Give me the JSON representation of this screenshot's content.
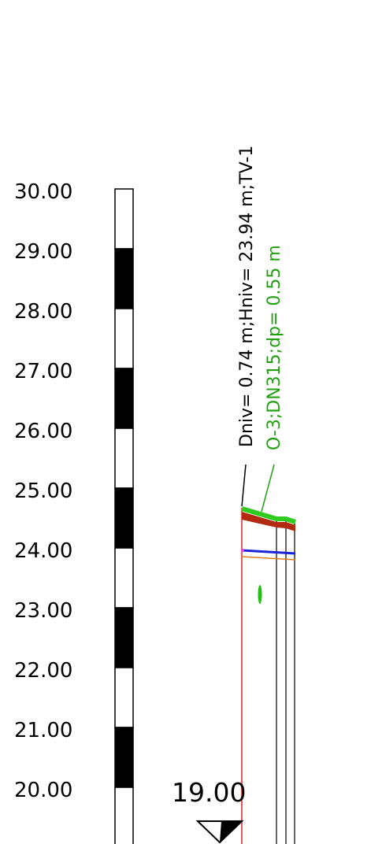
{
  "scale": {
    "ticks": [
      "30.00",
      "29.00",
      "28.00",
      "27.00",
      "26.00",
      "25.00",
      "24.00",
      "23.00",
      "22.00",
      "21.00",
      "20.00"
    ]
  },
  "reference": {
    "level_label": "19.00"
  },
  "annotations": {
    "level_info": "Dniv= 0.74 m;Hniv= 23.94 m;TV-1",
    "pipe_info": "O-3;DN315;dp= 0.55 m"
  },
  "colors": {
    "scale_dark": "#000000",
    "scale_light": "#ffffff",
    "ground_surface": "#2ecc1e",
    "soil_layer": "#b22b10",
    "water_level": "#1a22d6",
    "pipe_level": "#e07b18",
    "borehole_wall": "#e02020",
    "pipe_label": "#22a012",
    "level_label": "#000000"
  }
}
